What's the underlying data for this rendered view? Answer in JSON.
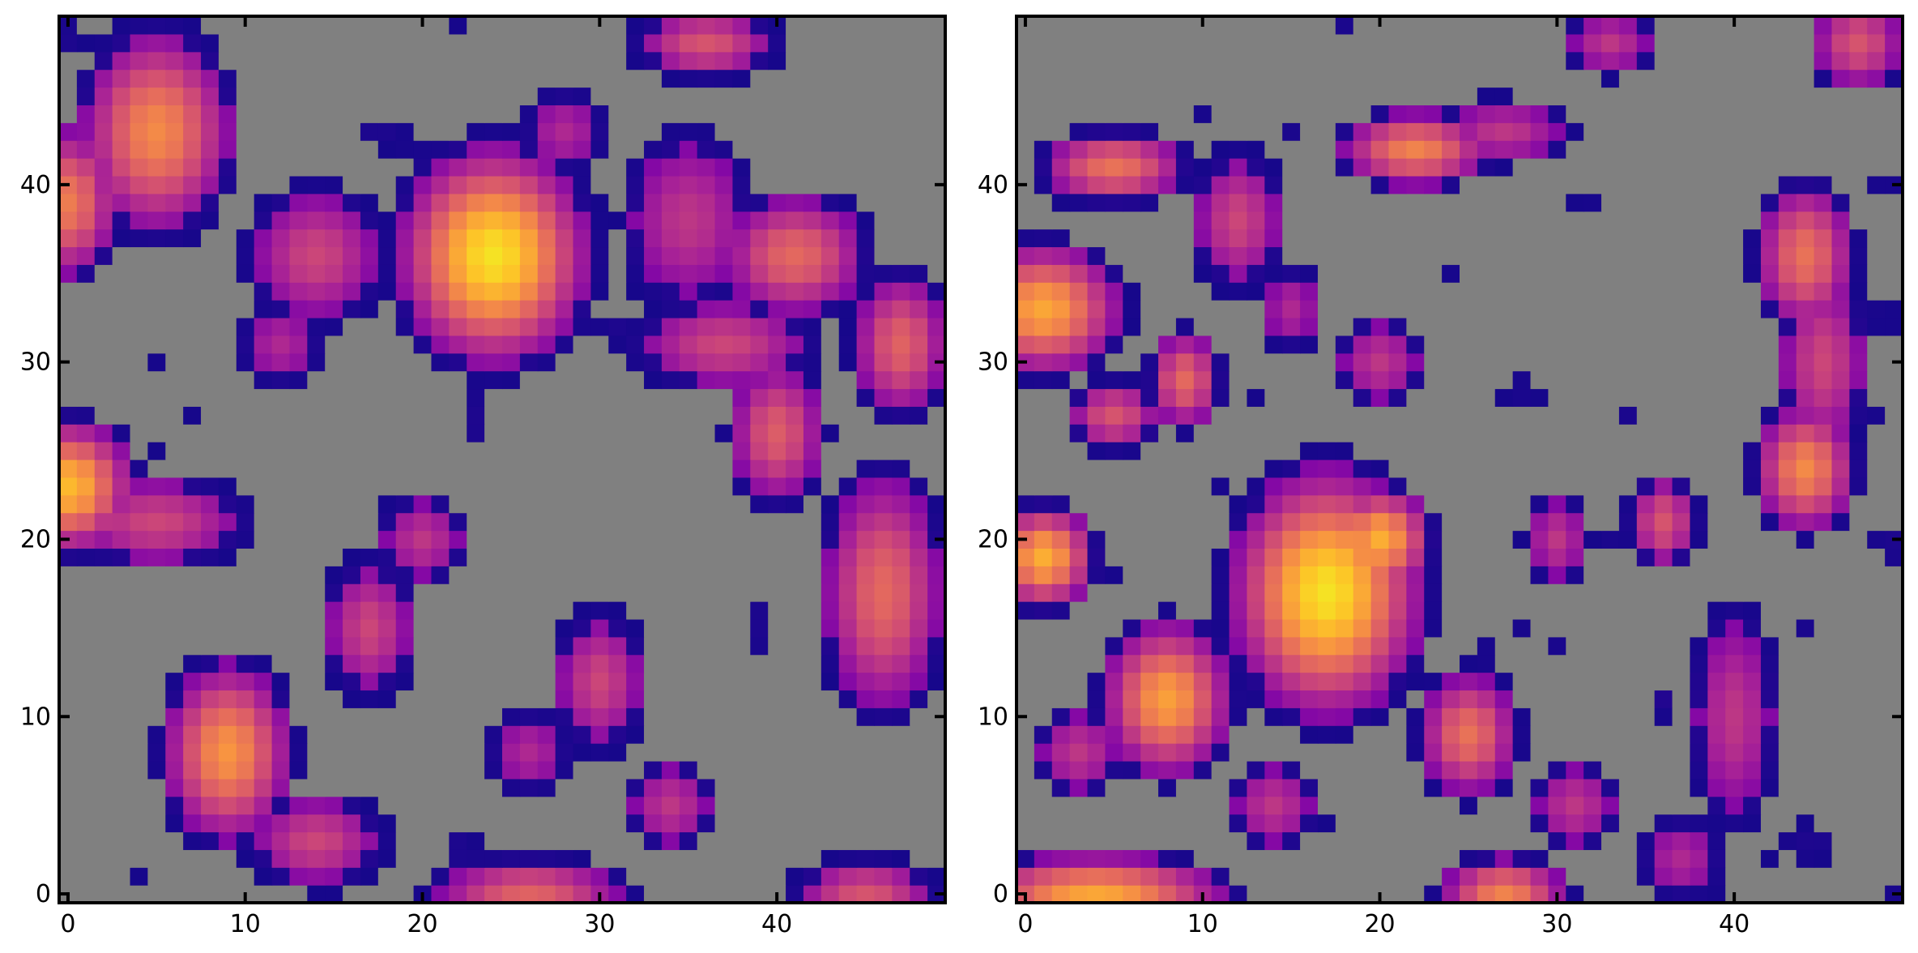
{
  "palette": {
    "mask": "#808080",
    "background": "#ffffff",
    "frame": "#000000",
    "colormap": "plasma"
  },
  "chart_data": [
    {
      "type": "heatmap",
      "title": "",
      "xlabel": "",
      "ylabel": "",
      "grid": false,
      "origin": "lower",
      "shape": [
        50,
        50
      ],
      "xlim": [
        -0.5,
        49.5
      ],
      "ylim": [
        -0.5,
        49.5
      ],
      "colormap": "plasma",
      "masked_color": "#808080",
      "xticks": [
        0,
        10,
        20,
        30,
        40
      ],
      "yticks": [
        0,
        10,
        20,
        30,
        40
      ],
      "xticklabels": [
        "0",
        "10",
        "20",
        "30",
        "40"
      ],
      "yticklabels": [
        "0",
        "10",
        "20",
        "30",
        "40"
      ],
      "blobs": [
        {
          "x": 24,
          "y": 36,
          "peak": 0.95,
          "rx": 3.5,
          "ry": 4
        },
        {
          "x": 5,
          "y": 43,
          "peak": 0.72,
          "rx": 3,
          "ry": 4
        },
        {
          "x": 0,
          "y": 39,
          "peak": 0.68,
          "rx": 2,
          "ry": 3
        },
        {
          "x": 0,
          "y": 23,
          "peak": 0.85,
          "rx": 2.5,
          "ry": 2.5
        },
        {
          "x": 5,
          "y": 21,
          "peak": 0.5,
          "rx": 4,
          "ry": 2
        },
        {
          "x": 9,
          "y": 8,
          "peak": 0.75,
          "rx": 2.5,
          "ry": 3.5
        },
        {
          "x": 14,
          "y": 3,
          "peak": 0.5,
          "rx": 3,
          "ry": 2
        },
        {
          "x": 26,
          "y": 0,
          "peak": 0.6,
          "rx": 4,
          "ry": 1.5
        },
        {
          "x": 45,
          "y": 0,
          "peak": 0.55,
          "rx": 3,
          "ry": 1.5
        },
        {
          "x": 46,
          "y": 17,
          "peak": 0.62,
          "rx": 2.5,
          "ry": 5
        },
        {
          "x": 40,
          "y": 26,
          "peak": 0.58,
          "rx": 2,
          "ry": 3
        },
        {
          "x": 41,
          "y": 36,
          "peak": 0.62,
          "rx": 3,
          "ry": 2.5
        },
        {
          "x": 35,
          "y": 38,
          "peak": 0.45,
          "rx": 3,
          "ry": 4
        },
        {
          "x": 37,
          "y": 31,
          "peak": 0.5,
          "rx": 4,
          "ry": 2
        },
        {
          "x": 14,
          "y": 36,
          "peak": 0.5,
          "rx": 3,
          "ry": 3
        },
        {
          "x": 12,
          "y": 31,
          "peak": 0.4,
          "rx": 2,
          "ry": 2
        },
        {
          "x": 17,
          "y": 15,
          "peak": 0.5,
          "rx": 2,
          "ry": 3
        },
        {
          "x": 20,
          "y": 20,
          "peak": 0.45,
          "rx": 2,
          "ry": 2
        },
        {
          "x": 30,
          "y": 12,
          "peak": 0.5,
          "rx": 2,
          "ry": 3
        },
        {
          "x": 34,
          "y": 5,
          "peak": 0.45,
          "rx": 2,
          "ry": 2
        },
        {
          "x": 36,
          "y": 48,
          "peak": 0.55,
          "rx": 3,
          "ry": 1.5
        },
        {
          "x": 47,
          "y": 31,
          "peak": 0.6,
          "rx": 2,
          "ry": 3
        },
        {
          "x": 28,
          "y": 43,
          "peak": 0.4,
          "rx": 2,
          "ry": 2
        },
        {
          "x": 26,
          "y": 8,
          "peak": 0.4,
          "rx": 2,
          "ry": 2
        }
      ],
      "threshold": 0.18,
      "noise_seed": 7
    },
    {
      "type": "heatmap",
      "title": "",
      "xlabel": "",
      "ylabel": "",
      "grid": false,
      "origin": "lower",
      "shape": [
        50,
        50
      ],
      "xlim": [
        -0.5,
        49.5
      ],
      "ylim": [
        -0.5,
        49.5
      ],
      "colormap": "plasma",
      "masked_color": "#808080",
      "xticks": [
        0,
        10,
        20,
        30,
        40
      ],
      "yticks": [
        0,
        10,
        20,
        30,
        40
      ],
      "xticklabels": [
        "0",
        "10",
        "20",
        "30",
        "40"
      ],
      "yticklabels": [
        "0",
        "10",
        "20",
        "30",
        "40"
      ],
      "blobs": [
        {
          "x": 17,
          "y": 17,
          "peak": 0.95,
          "rx": 3.5,
          "ry": 4.5
        },
        {
          "x": 20,
          "y": 20,
          "peak": 0.82,
          "rx": 2,
          "ry": 2
        },
        {
          "x": 8,
          "y": 11,
          "peak": 0.78,
          "rx": 2.5,
          "ry": 3
        },
        {
          "x": 1,
          "y": 33,
          "peak": 0.8,
          "rx": 3,
          "ry": 2.5
        },
        {
          "x": 1,
          "y": 19,
          "peak": 0.82,
          "rx": 2,
          "ry": 2
        },
        {
          "x": 4,
          "y": 0,
          "peak": 0.8,
          "rx": 5,
          "ry": 1.5
        },
        {
          "x": 27,
          "y": 0,
          "peak": 0.7,
          "rx": 2.5,
          "ry": 1.5
        },
        {
          "x": 44,
          "y": 24,
          "peak": 0.72,
          "rx": 2,
          "ry": 2.5
        },
        {
          "x": 44,
          "y": 36,
          "peak": 0.65,
          "rx": 2,
          "ry": 3
        },
        {
          "x": 45,
          "y": 30,
          "peak": 0.5,
          "rx": 2,
          "ry": 4
        },
        {
          "x": 22,
          "y": 42,
          "peak": 0.7,
          "rx": 3,
          "ry": 1.5
        },
        {
          "x": 27,
          "y": 43,
          "peak": 0.45,
          "rx": 3,
          "ry": 1.5
        },
        {
          "x": 5,
          "y": 41,
          "peak": 0.65,
          "rx": 3,
          "ry": 1.5
        },
        {
          "x": 9,
          "y": 29,
          "peak": 0.62,
          "rx": 1.5,
          "ry": 2
        },
        {
          "x": 25,
          "y": 9,
          "peak": 0.65,
          "rx": 2,
          "ry": 2.5
        },
        {
          "x": 14,
          "y": 5,
          "peak": 0.45,
          "rx": 2,
          "ry": 2
        },
        {
          "x": 12,
          "y": 38,
          "peak": 0.5,
          "rx": 2,
          "ry": 3
        },
        {
          "x": 15,
          "y": 33,
          "peak": 0.4,
          "rx": 1.5,
          "ry": 2
        },
        {
          "x": 36,
          "y": 21,
          "peak": 0.55,
          "rx": 1.5,
          "ry": 2
        },
        {
          "x": 30,
          "y": 20,
          "peak": 0.45,
          "rx": 1.5,
          "ry": 2
        },
        {
          "x": 40,
          "y": 10,
          "peak": 0.45,
          "rx": 2,
          "ry": 5
        },
        {
          "x": 47,
          "y": 48,
          "peak": 0.55,
          "rx": 2,
          "ry": 2
        },
        {
          "x": 33,
          "y": 48,
          "peak": 0.45,
          "rx": 2,
          "ry": 1.5
        },
        {
          "x": 31,
          "y": 5,
          "peak": 0.45,
          "rx": 2,
          "ry": 2
        },
        {
          "x": 37,
          "y": 2,
          "peak": 0.4,
          "rx": 2,
          "ry": 2
        },
        {
          "x": 3,
          "y": 8,
          "peak": 0.45,
          "rx": 2,
          "ry": 2
        },
        {
          "x": 5,
          "y": 27,
          "peak": 0.55,
          "rx": 2,
          "ry": 1.5
        },
        {
          "x": 20,
          "y": 30,
          "peak": 0.45,
          "rx": 2,
          "ry": 2
        }
      ],
      "threshold": 0.18,
      "noise_seed": 21
    }
  ]
}
